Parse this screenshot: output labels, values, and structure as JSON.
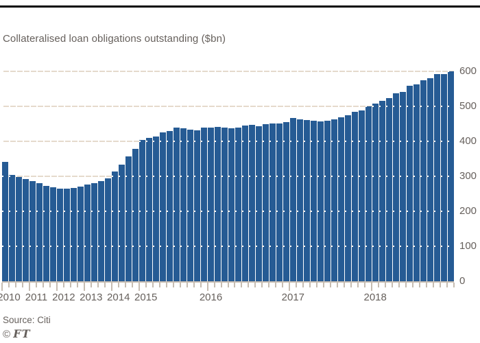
{
  "title": "Collateralised loan obligations outstanding ($bn)",
  "source_label": "Source: Citi",
  "copyright_symbol": "©",
  "copyright_ft": "FT",
  "colors": {
    "bar": "#265B94",
    "gridline": "#E5DACC",
    "axis_and_ticks": "#C6BCB1",
    "grid_dots_over_bars": "#FFFFFF",
    "text": "#66605C",
    "top_rule": "#000000",
    "background": "#FFFFFF"
  },
  "y_axis": {
    "side": "right",
    "min": 0,
    "max_drawn": 620,
    "tick_interval": 100,
    "ticks": [
      0,
      100,
      200,
      300,
      400,
      500,
      600
    ]
  },
  "x_axis": {
    "years": [
      {
        "label": "2010",
        "start_index": 0
      },
      {
        "label": "2011",
        "start_index": 4
      },
      {
        "label": "2012",
        "start_index": 8
      },
      {
        "label": "2013",
        "start_index": 12
      },
      {
        "label": "2014",
        "start_index": 16
      },
      {
        "label": "2015",
        "start_index": 20
      },
      {
        "label": "2016",
        "start_index": 30
      },
      {
        "label": "2017",
        "start_index": 42
      },
      {
        "label": "2018",
        "start_index": 54
      }
    ]
  },
  "chart_data": {
    "type": "bar",
    "title": "Collateralised loan obligations outstanding ($bn)",
    "unit": "$bn",
    "ylabel": "",
    "xlabel": "",
    "ylim": [
      0,
      620
    ],
    "frequency_note": "quarterly 2010 Q1 - 2015 Q1, monthly from 2015-04",
    "quarterly_count": 21,
    "periods": [
      "2010 Q1",
      "2010 Q2",
      "2010 Q3",
      "2010 Q4",
      "2011 Q1",
      "2011 Q2",
      "2011 Q3",
      "2011 Q4",
      "2012 Q1",
      "2012 Q2",
      "2012 Q3",
      "2012 Q4",
      "2013 Q1",
      "2013 Q2",
      "2013 Q3",
      "2013 Q4",
      "2014 Q1",
      "2014 Q2",
      "2014 Q3",
      "2014 Q4",
      "2015 Q1",
      "2015-04",
      "2015-05",
      "2015-06",
      "2015-07",
      "2015-08",
      "2015-09",
      "2015-10",
      "2015-11",
      "2015-12",
      "2016-01",
      "2016-02",
      "2016-03",
      "2016-04",
      "2016-05",
      "2016-06",
      "2016-07",
      "2016-08",
      "2016-09",
      "2016-10",
      "2016-11",
      "2016-12",
      "2017-01",
      "2017-02",
      "2017-03",
      "2017-04",
      "2017-05",
      "2017-06",
      "2017-07",
      "2017-08",
      "2017-09",
      "2017-10",
      "2017-11",
      "2017-12",
      "2018-01",
      "2018-02",
      "2018-03",
      "2018-04",
      "2018-05",
      "2018-06",
      "2018-07",
      "2018-08",
      "2018-09",
      "2018-10",
      "2018-11",
      "2018-12"
    ],
    "values": [
      341,
      304,
      299,
      293,
      287,
      281,
      273,
      269,
      265,
      265,
      267,
      271,
      276,
      280,
      286,
      295,
      314,
      333,
      357,
      378,
      404,
      410,
      414,
      426,
      430,
      440,
      437,
      433,
      431,
      440,
      439,
      441,
      440,
      437,
      440,
      445,
      448,
      444,
      450,
      452,
      452,
      456,
      467,
      464,
      461,
      459,
      457,
      459,
      463,
      469,
      475,
      485,
      488,
      500,
      508,
      516,
      523,
      538,
      542,
      559,
      564,
      575,
      580,
      593,
      593,
      601
    ]
  }
}
